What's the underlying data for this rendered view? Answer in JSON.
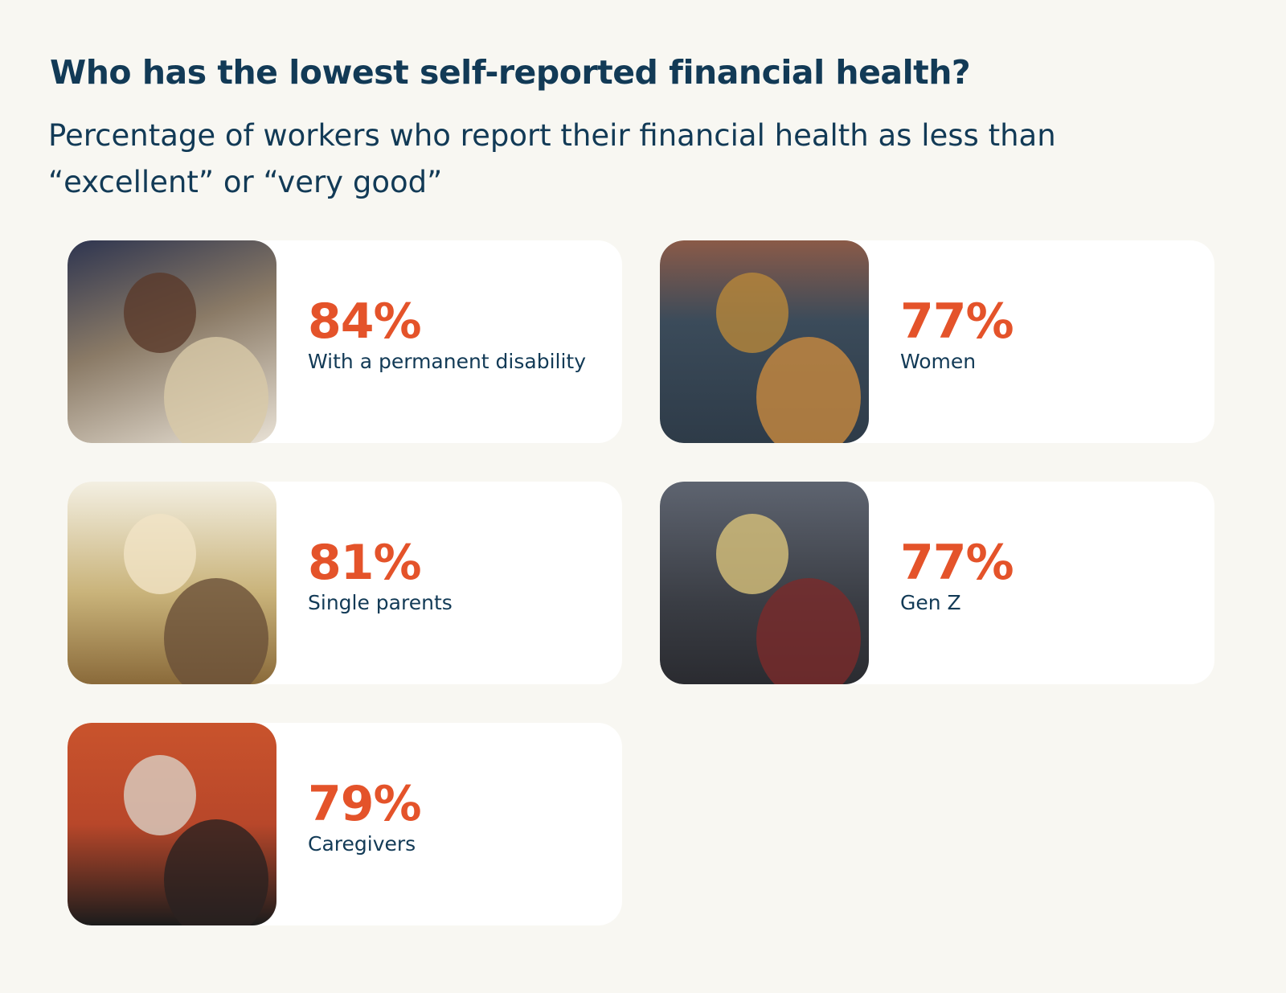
{
  "header": {
    "title": "Who has the lowest self-reported financial health?",
    "subtitle": "Percentage of workers who report their financial health as less than “excellent” or “very good”"
  },
  "cards": [
    {
      "value": "84%",
      "label": "With a permanent disability"
    },
    {
      "value": "77%",
      "label": "Women"
    },
    {
      "value": "81%",
      "label": "Single parents"
    },
    {
      "value": "77%",
      "label": "Gen Z"
    },
    {
      "value": "79%",
      "label": "Caregivers"
    }
  ]
}
